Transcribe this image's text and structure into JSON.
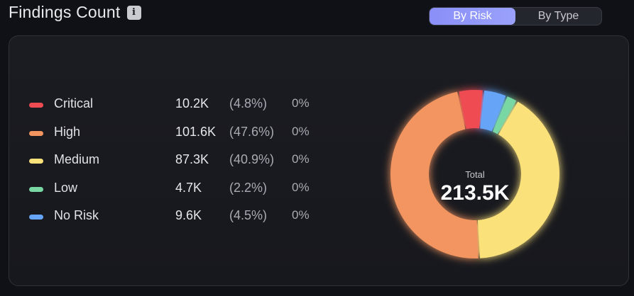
{
  "header": {
    "title": "Findings Count",
    "info_icon": "info-icon"
  },
  "toggle": {
    "options": [
      "By Risk",
      "By Type"
    ],
    "selected": "By Risk"
  },
  "legend": [
    {
      "label": "Critical",
      "value": "10.2K",
      "percent": "(4.8%)",
      "change": "0%",
      "color": "#ef4b52"
    },
    {
      "label": "High",
      "value": "101.6K",
      "percent": "(47.6%)",
      "change": "0%",
      "color": "#f39560"
    },
    {
      "label": "Medium",
      "value": "87.3K",
      "percent": "(40.9%)",
      "change": "0%",
      "color": "#fbe17a"
    },
    {
      "label": "Low",
      "value": "4.7K",
      "percent": "(2.2%)",
      "change": "0%",
      "color": "#78d7a3"
    },
    {
      "label": "No Risk",
      "value": "9.6K",
      "percent": "(4.5%)",
      "change": "0%",
      "color": "#66a4f7"
    }
  ],
  "donut": {
    "center_label": "Total",
    "center_value": "213.5K"
  },
  "chart_data": {
    "type": "pie",
    "categories": [
      "Critical",
      "No Risk",
      "Low",
      "Medium",
      "High"
    ],
    "values": [
      4.8,
      4.5,
      2.2,
      40.9,
      47.6
    ],
    "colors": [
      "#ef4b52",
      "#66a4f7",
      "#78d7a3",
      "#fbe17a",
      "#f39560"
    ]
  }
}
